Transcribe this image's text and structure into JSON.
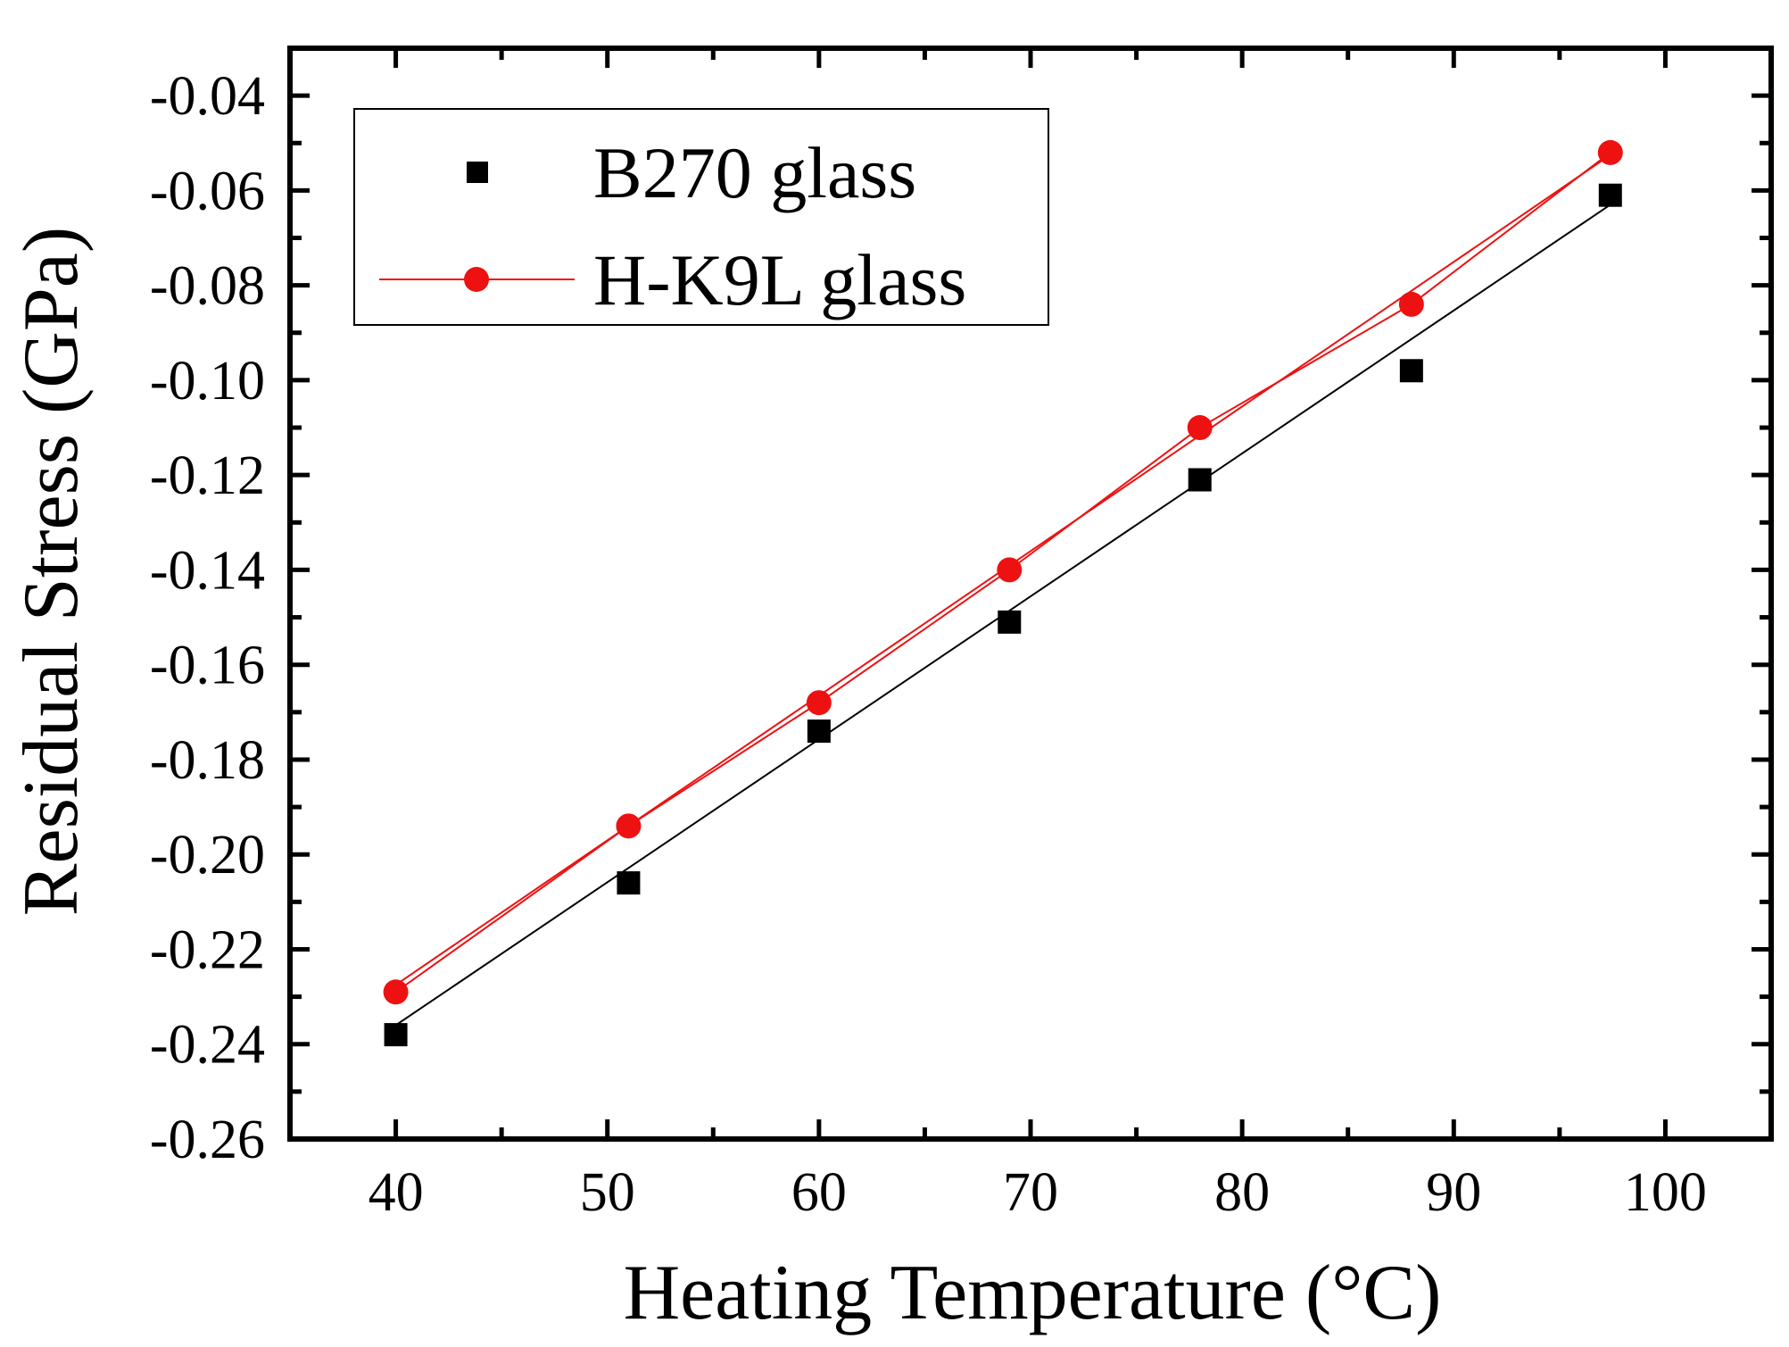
{
  "chart_data": {
    "type": "scatter",
    "title": "",
    "xlabel": "Heating Temperature (°C)",
    "ylabel": "Residual Stress (GPa)",
    "xlim": [
      35,
      105
    ],
    "ylim": [
      -0.26,
      -0.03
    ],
    "xticks": [
      40,
      50,
      60,
      70,
      80,
      90,
      100
    ],
    "xtick_labels": [
      "40",
      "50",
      "60",
      "70",
      "80",
      "90",
      "100"
    ],
    "yticks": [
      -0.26,
      -0.24,
      -0.22,
      -0.2,
      -0.18,
      -0.16,
      -0.14,
      -0.12,
      -0.1,
      -0.08,
      -0.06,
      -0.04
    ],
    "ytick_labels": [
      "-0.26",
      "-0.24",
      "-0.22",
      "-0.20",
      "-0.18",
      "-0.16",
      "-0.14",
      "-0.12",
      "-0.10",
      "-0.08",
      "-0.06",
      "-0.04"
    ],
    "grid": false,
    "legend_position": "top-left",
    "series": [
      {
        "name": "B270 glass",
        "color": "#000000",
        "marker": "square",
        "connect_points": false,
        "x": [
          40,
          51,
          60,
          69,
          78,
          88,
          97.4
        ],
        "y": [
          -0.238,
          -0.206,
          -0.174,
          -0.151,
          -0.121,
          -0.098,
          -0.061
        ],
        "fit": {
          "x": [
            40,
            97.4
          ],
          "y": [
            -0.236,
            -0.063
          ]
        }
      },
      {
        "name": "H-K9L glass",
        "color": "#ee1111",
        "marker": "circle",
        "connect_points": true,
        "x": [
          40,
          51,
          60,
          69,
          78,
          88,
          97.4
        ],
        "y": [
          -0.229,
          -0.194,
          -0.168,
          -0.14,
          -0.11,
          -0.084,
          -0.052
        ],
        "fit": {
          "x": [
            40,
            97.4
          ],
          "y": [
            -0.2275,
            -0.0525
          ]
        }
      }
    ]
  }
}
